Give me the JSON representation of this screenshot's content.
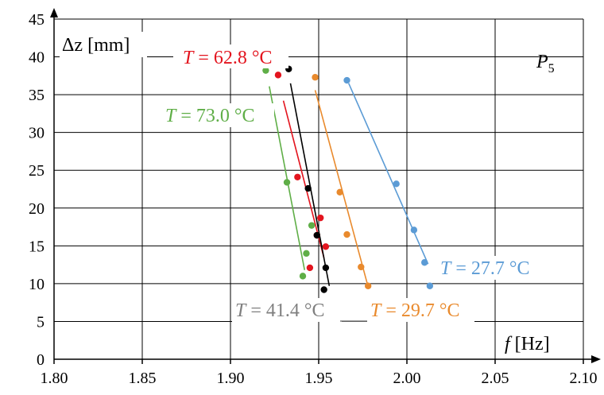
{
  "chart_data": {
    "type": "scatter",
    "title": "P",
    "title_subscript": "5",
    "xlabel_var": "f",
    "xlabel_unit": " [Hz]",
    "ylabel_var": "Δz",
    "ylabel_unit": " [mm]",
    "xlim": [
      1.8,
      2.1
    ],
    "ylim": [
      0,
      45
    ],
    "xticks": [
      "1.80",
      "1.85",
      "1.90",
      "1.95",
      "2.00",
      "2.05",
      "2.10"
    ],
    "yticks": [
      "0",
      "5",
      "10",
      "15",
      "20",
      "25",
      "30",
      "35",
      "40",
      "45"
    ],
    "grid": true,
    "series": [
      {
        "name": "T = 62.8 °C",
        "label_parts": [
          "T",
          " = 62.8 °C"
        ],
        "color": "#e3141e",
        "x": [
          1.927,
          1.938,
          1.951,
          1.954,
          1.949,
          1.945
        ],
        "y": [
          37.6,
          24.1,
          18.7,
          14.9,
          16.4,
          12.1
        ],
        "fit": [
          [
            1.93,
            34.2
          ],
          [
            1.953,
            13.4
          ]
        ]
      },
      {
        "name": "T = 73.0 °C",
        "label_parts": [
          "T",
          " = 73.0 °C"
        ],
        "color": "#5fae47",
        "x": [
          1.92,
          1.932,
          1.946,
          1.943,
          1.941
        ],
        "y": [
          38.2,
          23.4,
          17.7,
          14.0,
          11.0
        ],
        "fit": [
          [
            1.922,
            36.1
          ],
          [
            1.942,
            11.8
          ]
        ]
      },
      {
        "name": "T = 41.4 °C",
        "label_parts": [
          "T",
          " = 41.4 °C"
        ],
        "color": "#000000",
        "x": [
          1.933,
          1.944,
          1.949,
          1.954,
          1.953
        ],
        "y": [
          38.4,
          22.6,
          16.4,
          12.1,
          9.2
        ],
        "fit": [
          [
            1.934,
            36.5
          ],
          [
            1.956,
            9.7
          ]
        ]
      },
      {
        "name": "T = 29.7 °C",
        "label_parts": [
          "T",
          " = 29.7 °C"
        ],
        "color": "#e98a2d",
        "x": [
          1.948,
          1.962,
          1.966,
          1.974,
          1.978
        ],
        "y": [
          37.3,
          22.1,
          16.5,
          12.2,
          9.7
        ],
        "fit": [
          [
            1.948,
            35.6
          ],
          [
            1.978,
            9.6
          ]
        ]
      },
      {
        "name": "T = 27.7 °C",
        "label_parts": [
          "T",
          " = 27.7 °C"
        ],
        "color": "#5b9bd5",
        "x": [
          1.966,
          1.994,
          2.004,
          2.01,
          2.013
        ],
        "y": [
          36.9,
          23.2,
          17.1,
          12.8,
          9.7
        ],
        "fit": [
          [
            1.967,
            36.5
          ],
          [
            2.012,
            12.6
          ]
        ]
      }
    ]
  }
}
